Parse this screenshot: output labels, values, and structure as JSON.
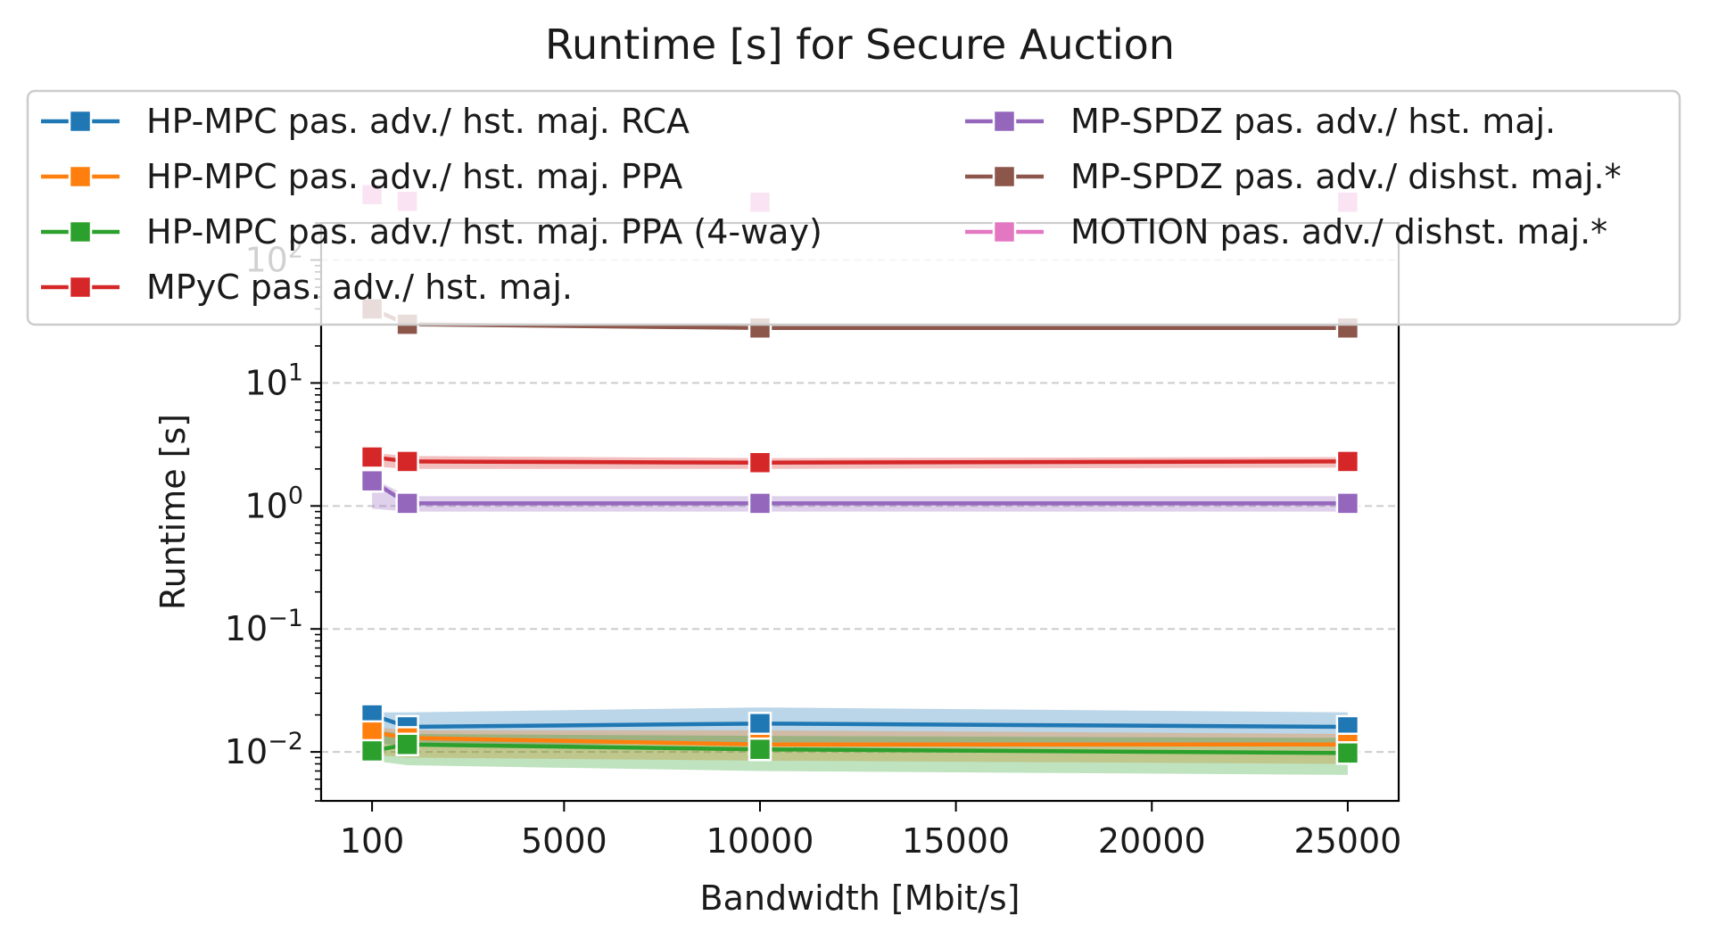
{
  "chart_data": {
    "type": "line",
    "title": "Runtime [s] for Secure Auction",
    "xlabel": "Bandwidth [Mbit/s]",
    "ylabel": "Runtime [s]",
    "y_scale": "log",
    "ylim": [
      0.004,
      200
    ],
    "xlim": [
      -1200,
      26300
    ],
    "x": [
      100,
      1000,
      10000,
      25000
    ],
    "x_ticks": [
      100,
      5000,
      10000,
      15000,
      20000,
      25000
    ],
    "x_tick_labels": [
      "100",
      "5000",
      "10000",
      "15000",
      "20000",
      "25000"
    ],
    "y_ticks": [
      0.01,
      0.1,
      1,
      10,
      100
    ],
    "y_tick_labels": [
      {
        "base": "10",
        "exp": "−2"
      },
      {
        "base": "10",
        "exp": "−1"
      },
      {
        "base": "10",
        "exp": "0"
      },
      {
        "base": "10",
        "exp": "1"
      },
      {
        "base": "10",
        "exp": "2"
      }
    ],
    "grid": "y-dashed",
    "legend": {
      "placement": "top",
      "columns": 2
    },
    "series": [
      {
        "name": "HP-MPC pas. adv./ hst. maj. RCA",
        "color": "#1f77b4",
        "values": [
          0.02,
          0.016,
          0.017,
          0.016
        ],
        "ci_low": [
          0.012,
          0.011,
          0.012,
          0.011
        ],
        "ci_high": [
          0.021,
          0.021,
          0.023,
          0.021
        ]
      },
      {
        "name": "HP-MPC pas. adv./ hst. maj. PPA",
        "color": "#ff7f0e",
        "values": [
          0.0145,
          0.013,
          0.0115,
          0.0115
        ],
        "ci_low": [
          0.0095,
          0.009,
          0.0085,
          0.008
        ],
        "ci_high": [
          0.016,
          0.015,
          0.015,
          0.014
        ]
      },
      {
        "name": "HP-MPC pas. adv./ hst. maj. PPA (4-way)",
        "color": "#2ca02c",
        "values": [
          0.0102,
          0.0115,
          0.0105,
          0.0098
        ],
        "ci_low": [
          0.0085,
          0.0078,
          0.007,
          0.0065
        ],
        "ci_high": [
          0.015,
          0.014,
          0.0135,
          0.013
        ]
      },
      {
        "name": "MPyC pas. adv./ hst. maj.",
        "color": "#d62728",
        "values": [
          2.5,
          2.3,
          2.25,
          2.3
        ],
        "ci_low": [
          2.1,
          2.0,
          2.0,
          2.05
        ],
        "ci_high": [
          2.7,
          2.55,
          2.45,
          2.5
        ]
      },
      {
        "name": "MP-SPDZ pas. adv./ hst. maj.",
        "color": "#9467bd",
        "values": [
          1.6,
          1.05,
          1.05,
          1.05
        ],
        "ci_low": [
          0.95,
          0.9,
          0.9,
          0.9
        ],
        "ci_high": [
          1.7,
          1.2,
          1.2,
          1.2
        ]
      },
      {
        "name": "MP-SPDZ pas. adv./ dishst. maj.*",
        "color": "#8c564b",
        "values": [
          40,
          30,
          28,
          28
        ],
        "ci_low": [
          38,
          29,
          27,
          27
        ],
        "ci_high": [
          42,
          31,
          29,
          29
        ]
      },
      {
        "name": "MOTION pas. adv./ dishst. maj.*",
        "color": "#e377c2",
        "values": [
          340,
          300,
          295,
          295
        ],
        "ci_low": [
          325,
          290,
          285,
          285
        ],
        "ci_high": [
          355,
          310,
          305,
          305
        ]
      }
    ]
  }
}
